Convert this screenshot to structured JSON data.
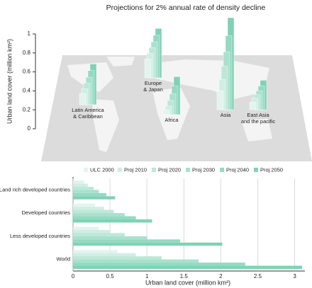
{
  "chart_data": [
    {
      "type": "map_bar",
      "title": "Projections for 2% annual rate of density decline",
      "ylabel": "Urban land cover (million km²)",
      "ylim": [
        0,
        1
      ],
      "yticks": [
        0,
        0.2,
        0.4,
        0.6,
        0.8,
        1
      ],
      "categories": [
        [
          "Latin America",
          "& Caribbean"
        ],
        [
          "Europe",
          "& Japan"
        ],
        [
          "Africa"
        ],
        [
          "Asia"
        ],
        [
          "East Asia",
          "and the pacific"
        ]
      ],
      "series": [
        {
          "name": "ULC 2000",
          "color": "#e3f4ee",
          "values": [
            0.12,
            0.2,
            0.05,
            0.2,
            0.08
          ]
        },
        {
          "name": "Proj 2010",
          "color": "#d0eee3",
          "values": [
            0.17,
            0.26,
            0.09,
            0.32,
            0.12
          ]
        },
        {
          "name": "Proj 2020",
          "color": "#bce8d8",
          "values": [
            0.23,
            0.32,
            0.15,
            0.46,
            0.16
          ]
        },
        {
          "name": "Proj 2030",
          "color": "#a8e1cd",
          "values": [
            0.29,
            0.38,
            0.22,
            0.61,
            0.2
          ]
        },
        {
          "name": "Proj 2040",
          "color": "#94dac2",
          "values": [
            0.36,
            0.45,
            0.3,
            0.78,
            0.25
          ]
        },
        {
          "name": "Proj 2050",
          "color": "#80d2b5",
          "values": [
            0.43,
            0.52,
            0.4,
            0.97,
            0.31
          ]
        }
      ]
    },
    {
      "type": "barh",
      "xlabel": "Urban land cover (million km²)",
      "xlim": [
        0,
        3.1
      ],
      "xticks": [
        0,
        0.5,
        1,
        1.5,
        2,
        2.5,
        3
      ],
      "categories": [
        "Land rich developed countries",
        "Developed countries",
        "Less developed countries",
        "World"
      ],
      "series": [
        {
          "name": "ULC 2000",
          "color": "#e3f4ee",
          "values": [
            0.15,
            0.3,
            0.35,
            0.6
          ]
        },
        {
          "name": "Proj 2010",
          "color": "#d0eee3",
          "values": [
            0.2,
            0.42,
            0.5,
            0.85
          ]
        },
        {
          "name": "Proj 2020",
          "color": "#bce8d8",
          "values": [
            0.28,
            0.55,
            0.7,
            1.2
          ]
        },
        {
          "name": "Proj 2030",
          "color": "#a8e1cd",
          "values": [
            0.35,
            0.7,
            1.0,
            1.7
          ]
        },
        {
          "name": "Proj 2040",
          "color": "#94dac2",
          "values": [
            0.45,
            0.85,
            1.45,
            2.33
          ]
        },
        {
          "name": "Proj 2050",
          "color": "#80d2b5",
          "values": [
            0.57,
            1.07,
            2.02,
            3.1
          ]
        }
      ]
    }
  ]
}
